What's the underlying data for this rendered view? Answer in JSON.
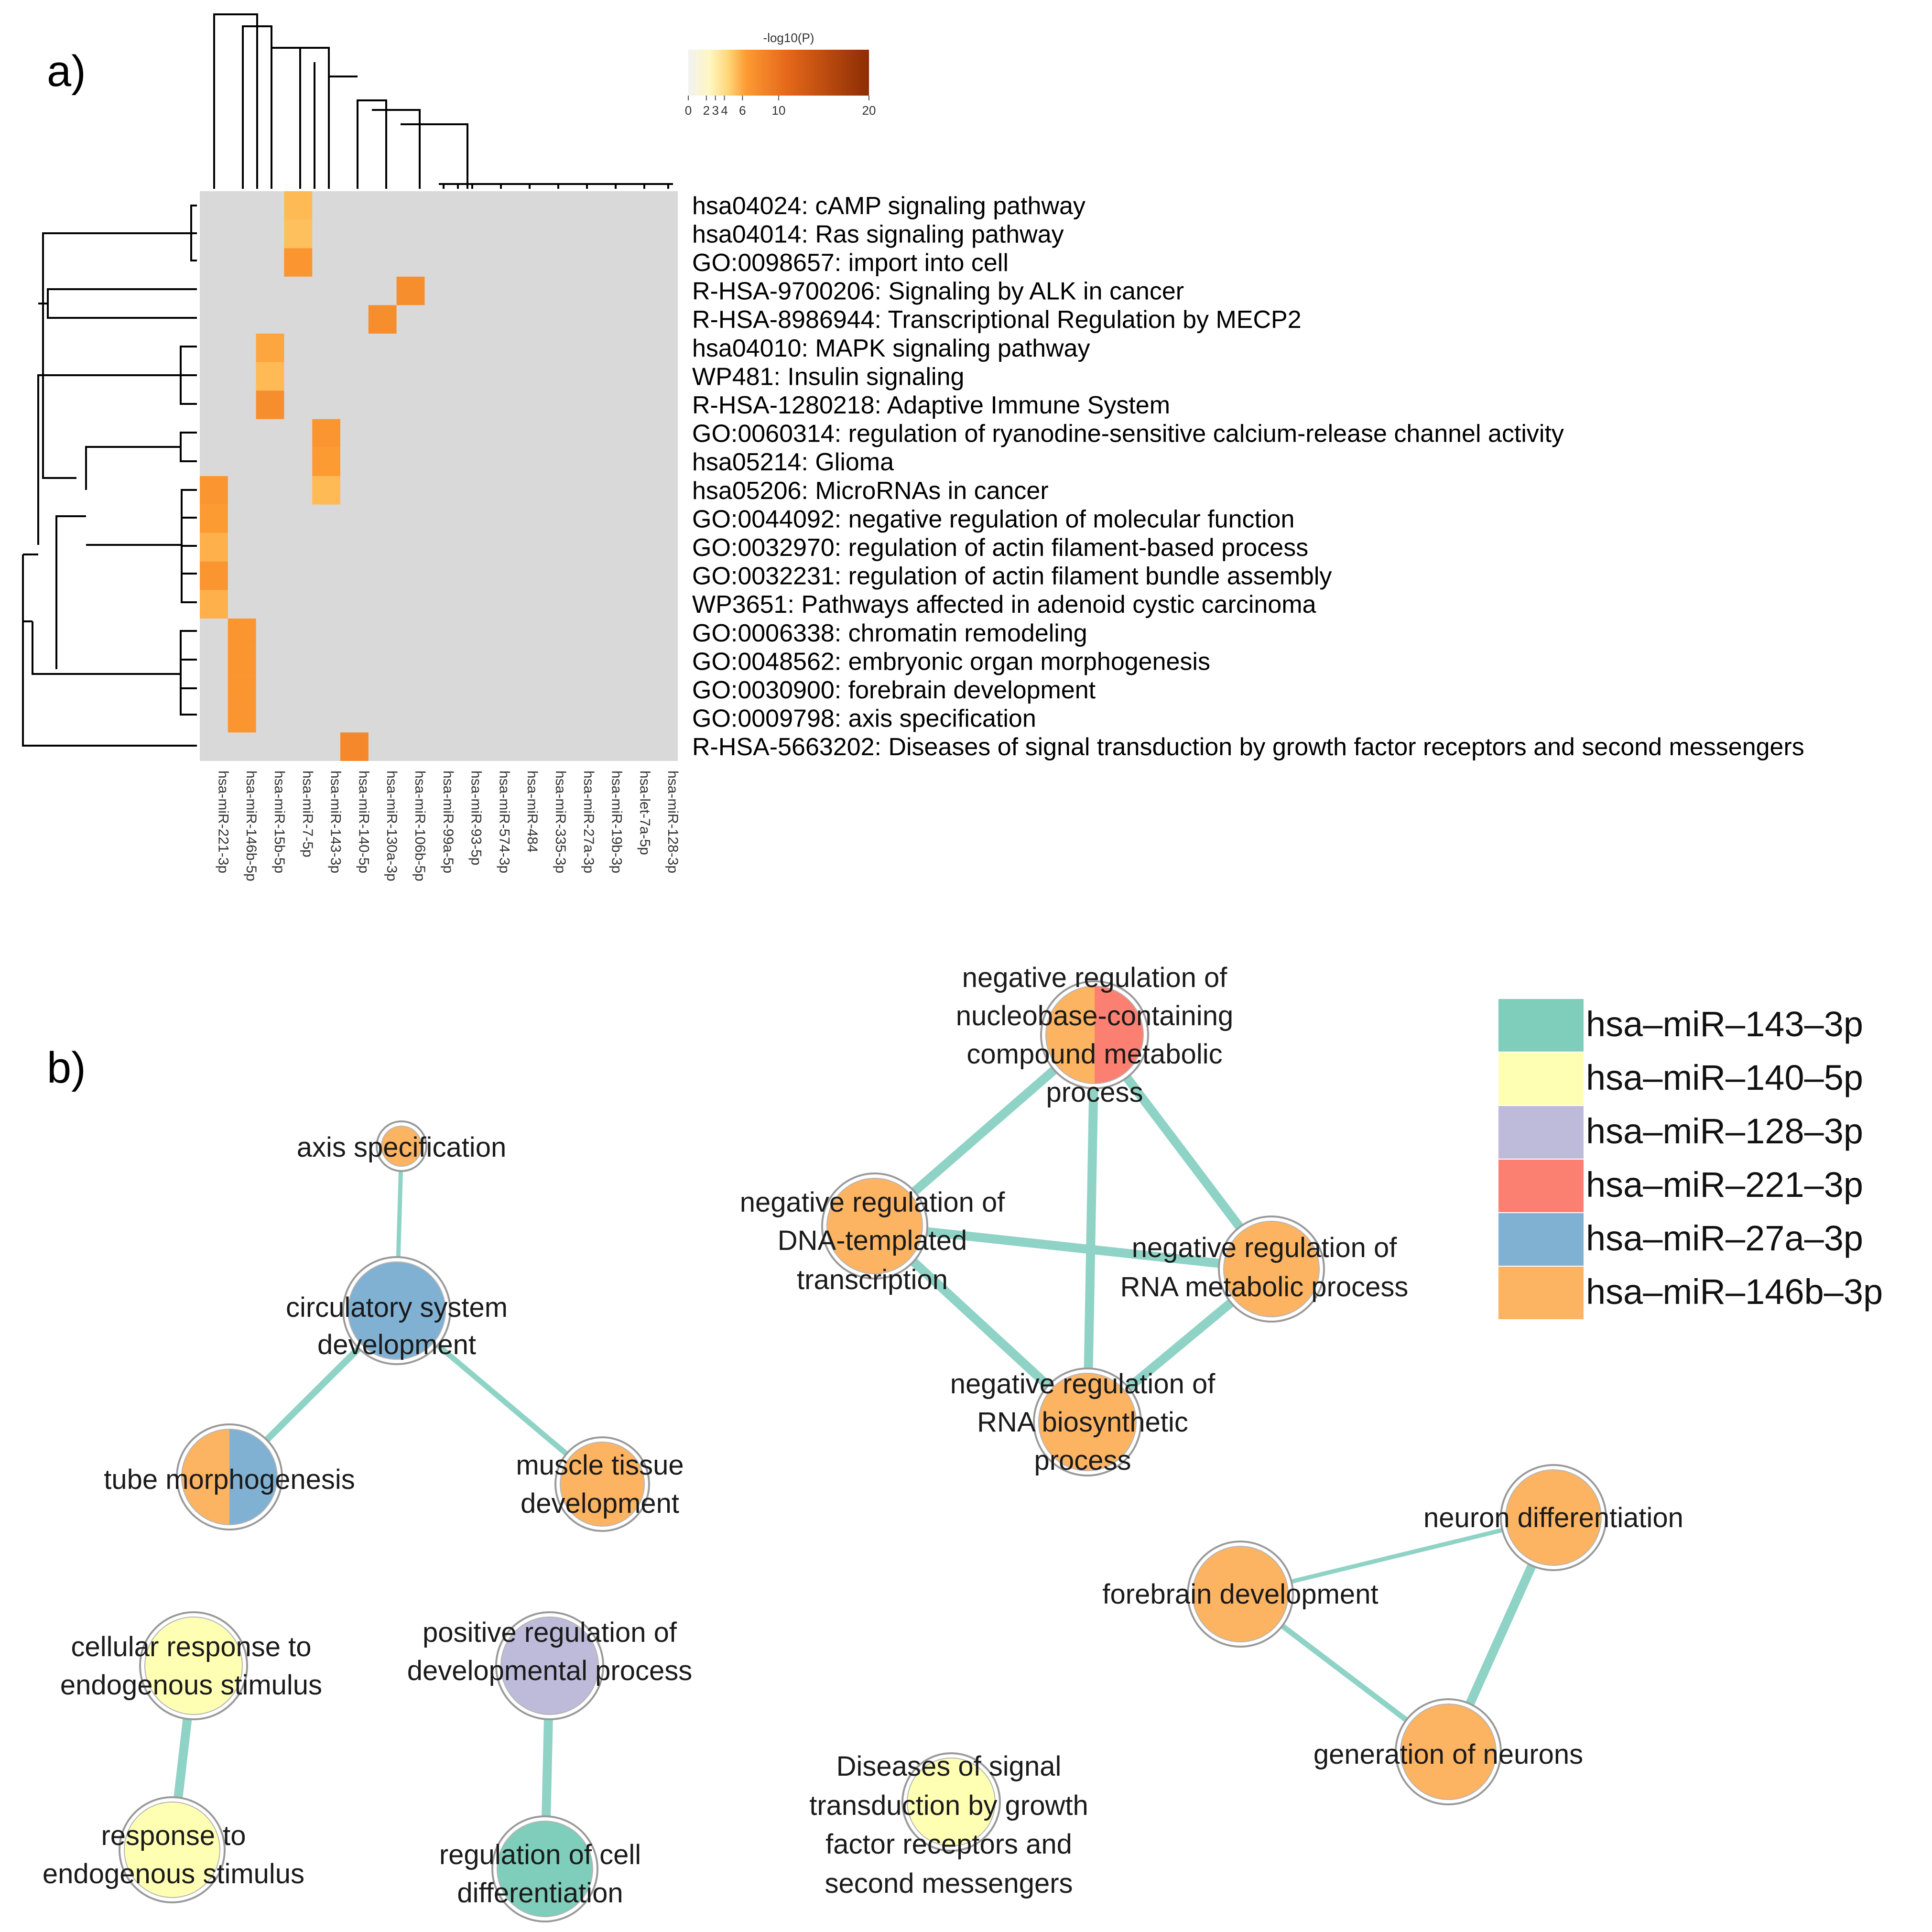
{
  "panel_a_label": "a)",
  "panel_b_label": "b)",
  "chart_data": [
    {
      "type": "heatmap",
      "title": "",
      "colorbar": {
        "label": "-log10(P)",
        "ticks": [
          "0",
          "2",
          "3",
          "4",
          "6",
          "10",
          "20"
        ],
        "range": [
          0,
          20
        ]
      },
      "columns": [
        "hsa-miR-221-3p",
        "hsa-miR-146b-5p",
        "hsa-miR-15b-5p",
        "hsa-miR-7-5p",
        "hsa-miR-143-3p",
        "hsa-miR-140-5p",
        "hsa-miR-130a-3p",
        "hsa-miR-106b-5p",
        "hsa-miR-99a-5p",
        "hsa-miR-93-5p",
        "hsa-miR-574-3p",
        "hsa-miR-484",
        "hsa-miR-335-3p",
        "hsa-miR-27a-3p",
        "hsa-miR-19b-3p",
        "hsa-let-7a-5p",
        "hsa-miR-128-3p"
      ],
      "rows": [
        "hsa04024: cAMP signaling pathway",
        "hsa04014: Ras signaling pathway",
        "GO:0098657: import into cell",
        "R-HSA-9700206: Signaling by ALK in cancer",
        "R-HSA-8986944: Transcriptional Regulation by MECP2",
        "hsa04010: MAPK signaling pathway",
        "WP481: Insulin signaling",
        "R-HSA-1280218: Adaptive Immune System",
        "GO:0060314: regulation of ryanodine-sensitive calcium-release channel activity",
        "hsa05214: Glioma",
        "hsa05206: MicroRNAs in cancer",
        "GO:0044092: negative regulation of molecular function",
        "GO:0032970: regulation of actin filament-based process",
        "GO:0032231: regulation of actin filament bundle assembly",
        "WP3651: Pathways affected in adenoid cystic carcinoma",
        "GO:0006338: chromatin remodeling",
        "GO:0048562: embryonic organ morphogenesis",
        "GO:0030900: forebrain development",
        "GO:0009798: axis specification",
        "R-HSA-5663202: Diseases of signal transduction by growth factor receptors and second messengers"
      ],
      "cells": [
        {
          "row": 0,
          "col": 3,
          "value": 4.5
        },
        {
          "row": 1,
          "col": 3,
          "value": 4.2
        },
        {
          "row": 2,
          "col": 3,
          "value": 6.5
        },
        {
          "row": 3,
          "col": 7,
          "value": 7.0
        },
        {
          "row": 4,
          "col": 6,
          "value": 7.0
        },
        {
          "row": 5,
          "col": 2,
          "value": 5.5
        },
        {
          "row": 6,
          "col": 2,
          "value": 4.5
        },
        {
          "row": 7,
          "col": 2,
          "value": 7.0
        },
        {
          "row": 8,
          "col": 4,
          "value": 6.5
        },
        {
          "row": 9,
          "col": 4,
          "value": 6.0
        },
        {
          "row": 10,
          "col": 4,
          "value": 4.5
        },
        {
          "row": 10,
          "col": 0,
          "value": 6.5
        },
        {
          "row": 11,
          "col": 0,
          "value": 6.0
        },
        {
          "row": 12,
          "col": 0,
          "value": 5.0
        },
        {
          "row": 13,
          "col": 0,
          "value": 6.5
        },
        {
          "row": 14,
          "col": 0,
          "value": 5.0
        },
        {
          "row": 15,
          "col": 1,
          "value": 6.5
        },
        {
          "row": 16,
          "col": 1,
          "value": 6.5
        },
        {
          "row": 17,
          "col": 1,
          "value": 6.5
        },
        {
          "row": 18,
          "col": 1,
          "value": 6.5
        },
        {
          "row": 19,
          "col": 5,
          "value": 7.5
        }
      ]
    },
    {
      "type": "network",
      "legend": [
        {
          "label": "hsa–miR–143–3p",
          "color": "#7fcdbb"
        },
        {
          "label": "hsa–miR–140–5p",
          "color": "#ffffb3"
        },
        {
          "label": "hsa–miR–128–3p",
          "color": "#bebada"
        },
        {
          "label": "hsa–miR–221–3p",
          "color": "#fb8072"
        },
        {
          "label": "hsa–miR–27a–3p",
          "color": "#80b1d3"
        },
        {
          "label": "hsa–miR–146b–3p",
          "color": "#fdb462"
        }
      ],
      "nodes": [
        {
          "id": "axis",
          "lines": [
            "axis specification"
          ],
          "colors": [
            "#fdb462"
          ]
        },
        {
          "id": "circ",
          "lines": [
            "circulatory system",
            "development"
          ],
          "colors": [
            "#80b1d3"
          ]
        },
        {
          "id": "tube",
          "lines": [
            "tube morphogenesis"
          ],
          "colors": [
            "#fdb462",
            "#80b1d3"
          ]
        },
        {
          "id": "muscle",
          "lines": [
            "muscle tissue",
            "development"
          ],
          "colors": [
            "#fdb462"
          ]
        },
        {
          "id": "cellresp",
          "lines": [
            "cellular response to",
            "endogenous stimulus"
          ],
          "colors": [
            "#ffffb3"
          ]
        },
        {
          "id": "resp",
          "lines": [
            "response to",
            "endogenous stimulus"
          ],
          "colors": [
            "#ffffb3"
          ]
        },
        {
          "id": "posreg",
          "lines": [
            "positive regulation of",
            "developmental process"
          ],
          "colors": [
            "#bebada"
          ]
        },
        {
          "id": "regcell",
          "lines": [
            "regulation of cell",
            "differentiation"
          ],
          "colors": [
            "#7fcdbb"
          ]
        },
        {
          "id": "nucleo",
          "lines": [
            "negative regulation of",
            "nucleobase-containing",
            "compound metabolic",
            "process"
          ],
          "colors": [
            "#fdb462",
            "#fb8072"
          ]
        },
        {
          "id": "dnatemp",
          "lines": [
            "negative regulation of",
            "DNA-templated",
            "transcription"
          ],
          "colors": [
            "#fdb462"
          ]
        },
        {
          "id": "rnamet",
          "lines": [
            "negative regulation of",
            "RNA metabolic process"
          ],
          "colors": [
            "#fdb462"
          ]
        },
        {
          "id": "rnabio",
          "lines": [
            "negative regulation of",
            "RNA biosynthetic",
            "process"
          ],
          "colors": [
            "#fdb462"
          ]
        },
        {
          "id": "diseases",
          "lines": [
            "Diseases of signal",
            "transduction by growth",
            "factor receptors and",
            "second messengers"
          ],
          "colors": [
            "#ffffb3"
          ]
        },
        {
          "id": "neuron",
          "lines": [
            "neuron differentiation"
          ],
          "colors": [
            "#fdb462"
          ]
        },
        {
          "id": "forebrain",
          "lines": [
            "forebrain development"
          ],
          "colors": [
            "#fdb462"
          ]
        },
        {
          "id": "genneur",
          "lines": [
            "generation of neurons"
          ],
          "colors": [
            "#fdb462"
          ]
        }
      ],
      "edges": [
        {
          "source": "axis",
          "target": "circ",
          "weight": 1
        },
        {
          "source": "circ",
          "target": "tube",
          "weight": 2
        },
        {
          "source": "circ",
          "target": "muscle",
          "weight": 1.5
        },
        {
          "source": "cellresp",
          "target": "resp",
          "weight": 3
        },
        {
          "source": "posreg",
          "target": "regcell",
          "weight": 3
        },
        {
          "source": "nucleo",
          "target": "dnatemp",
          "weight": 3
        },
        {
          "source": "nucleo",
          "target": "rnamet",
          "weight": 3
        },
        {
          "source": "nucleo",
          "target": "rnabio",
          "weight": 3
        },
        {
          "source": "dnatemp",
          "target": "rnamet",
          "weight": 3
        },
        {
          "source": "dnatemp",
          "target": "rnabio",
          "weight": 3
        },
        {
          "source": "rnamet",
          "target": "rnabio",
          "weight": 3
        },
        {
          "source": "neuron",
          "target": "forebrain",
          "weight": 1
        },
        {
          "source": "neuron",
          "target": "genneur",
          "weight": 3
        },
        {
          "source": "forebrain",
          "target": "genneur",
          "weight": 1.5
        }
      ]
    }
  ]
}
